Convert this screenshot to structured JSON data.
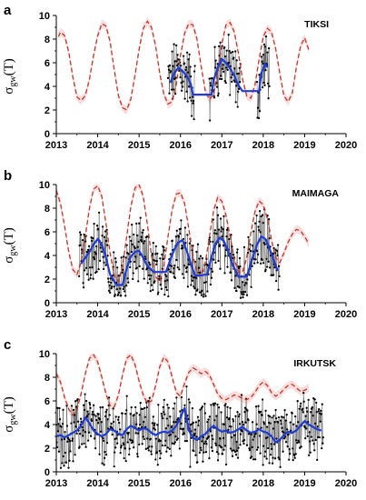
{
  "chart_data": [
    {
      "type": "line",
      "panel_label": "a",
      "station": "TIKSI",
      "ylabel": "σ",
      "ylabel_sub": "gw",
      "ylabel_suffix": "(T)",
      "xlim": [
        2013,
        2020
      ],
      "ylim": [
        0,
        10
      ],
      "xticks": [
        "2013",
        "2014",
        "2015",
        "2016",
        "2017",
        "2018",
        "2019",
        "2020"
      ],
      "yticks": [
        "0",
        "2",
        "4",
        "6",
        "8",
        "10"
      ],
      "grid": false,
      "colors": {
        "observed": "#000000",
        "smoothed": "#1f3bd6",
        "model": "#c0392b"
      },
      "model": {
        "x": [
          2013.05,
          2013.1,
          2013.2,
          2013.3,
          2013.4,
          2013.5,
          2013.6,
          2013.7,
          2013.8,
          2013.9,
          2014.0,
          2014.1,
          2014.2,
          2014.3,
          2014.4,
          2014.5,
          2014.6,
          2014.7,
          2014.8,
          2014.9,
          2015.0,
          2015.1,
          2015.2,
          2015.3,
          2015.4,
          2015.5,
          2015.6,
          2015.7,
          2015.8,
          2015.9,
          2016.0,
          2016.1,
          2016.2,
          2016.3,
          2016.4,
          2016.5,
          2016.6,
          2016.7,
          2016.8,
          2016.9,
          2017.0,
          2017.1,
          2017.2,
          2017.3,
          2017.4,
          2017.5,
          2017.6,
          2017.7,
          2017.8,
          2017.9,
          2018.0,
          2018.1,
          2018.2,
          2018.3,
          2018.4,
          2018.5,
          2018.6,
          2018.7,
          2018.8,
          2018.9,
          2019.0,
          2019.1
        ],
        "y": [
          8.2,
          8.6,
          8.3,
          6.9,
          4.8,
          3.1,
          2.8,
          3.2,
          4.6,
          6.6,
          8.3,
          9.3,
          9.1,
          7.8,
          5.4,
          3.2,
          2.2,
          2.0,
          2.9,
          4.9,
          7.1,
          8.9,
          9.5,
          9.0,
          7.4,
          5.1,
          3.3,
          2.5,
          2.7,
          4.2,
          6.6,
          8.5,
          9.3,
          9.2,
          8.0,
          5.7,
          3.6,
          2.9,
          3.3,
          5.2,
          7.6,
          9.2,
          9.4,
          8.6,
          6.8,
          4.6,
          3.2,
          3.0,
          4.1,
          6.3,
          8.2,
          8.9,
          8.6,
          7.2,
          5.1,
          3.2,
          2.7,
          3.4,
          5.6,
          7.4,
          8.1,
          7.1
        ]
      },
      "smoothed": {
        "x": [
          2015.75,
          2015.85,
          2015.95,
          2016.05,
          2016.15,
          2016.25,
          2016.3,
          2016.75,
          2016.8,
          2016.9,
          2017.0,
          2017.1,
          2017.2,
          2017.3,
          2017.4,
          2017.5,
          2017.9,
          2017.95,
          2018.05,
          2018.1
        ],
        "y": [
          4.3,
          5.1,
          5.6,
          5.3,
          4.9,
          4.2,
          3.3,
          3.3,
          4.5,
          5.6,
          6.3,
          6.0,
          5.5,
          4.9,
          4.1,
          3.6,
          3.6,
          5.1,
          5.9,
          5.6
        ]
      },
      "observed_segments": [
        [
          2015.7,
          2016.35
        ],
        [
          2016.7,
          2017.45
        ],
        [
          2017.85,
          2018.15
        ]
      ],
      "observed_range": [
        0.8,
        8.8
      ]
    },
    {
      "type": "line",
      "panel_label": "b",
      "station": "MAIMAGA",
      "ylabel": "σ",
      "ylabel_sub": "gw",
      "ylabel_suffix": "(T)",
      "xlim": [
        2013,
        2020
      ],
      "ylim": [
        0,
        10
      ],
      "xticks": [
        "2013",
        "2014",
        "2015",
        "2016",
        "2017",
        "2018",
        "2019",
        "2020"
      ],
      "yticks": [
        "0",
        "2",
        "4",
        "6",
        "8",
        "10"
      ],
      "grid": false,
      "colors": {
        "observed": "#000000",
        "smoothed": "#1f3bd6",
        "model": "#c0392b"
      },
      "model": {
        "x": [
          2013.0,
          2013.1,
          2013.2,
          2013.3,
          2013.4,
          2013.5,
          2013.6,
          2013.7,
          2013.8,
          2013.9,
          2014.0,
          2014.1,
          2014.2,
          2014.3,
          2014.4,
          2014.5,
          2014.6,
          2014.7,
          2014.8,
          2014.9,
          2015.0,
          2015.1,
          2015.2,
          2015.3,
          2015.4,
          2015.5,
          2015.6,
          2015.7,
          2015.8,
          2015.9,
          2016.0,
          2016.1,
          2016.2,
          2016.3,
          2016.4,
          2016.5,
          2016.6,
          2016.7,
          2016.8,
          2016.9,
          2017.0,
          2017.1,
          2017.2,
          2017.3,
          2017.4,
          2017.5,
          2017.6,
          2017.7,
          2017.8,
          2017.9,
          2018.0,
          2018.1,
          2018.2,
          2018.3,
          2018.4,
          2018.5,
          2018.6,
          2018.7,
          2018.8,
          2018.9,
          2019.0,
          2019.1
        ],
        "y": [
          9.5,
          8.4,
          6.5,
          4.3,
          2.8,
          2.4,
          3.4,
          5.6,
          8.0,
          9.6,
          9.9,
          9.0,
          6.7,
          4.2,
          2.3,
          1.8,
          3.1,
          5.6,
          8.1,
          9.7,
          10.0,
          9.0,
          6.6,
          4.0,
          2.2,
          1.8,
          3.2,
          5.6,
          7.9,
          9.2,
          9.3,
          8.4,
          6.3,
          4.0,
          2.6,
          2.3,
          3.4,
          5.6,
          7.8,
          8.9,
          8.6,
          7.4,
          5.6,
          3.7,
          2.6,
          2.6,
          3.8,
          5.9,
          7.7,
          8.6,
          8.3,
          7.1,
          5.3,
          3.8,
          3.4,
          4.2,
          5.1,
          5.8,
          6.2,
          6.1,
          5.6,
          5.0
        ]
      },
      "smoothed": {
        "x": [
          2013.6,
          2013.7,
          2013.8,
          2013.9,
          2014.0,
          2014.1,
          2014.2,
          2014.3,
          2014.45,
          2014.6,
          2014.7,
          2014.8,
          2014.9,
          2015.0,
          2015.1,
          2015.2,
          2015.35,
          2015.65,
          2015.75,
          2015.85,
          2015.95,
          2016.05,
          2016.15,
          2016.25,
          2016.35,
          2016.45,
          2016.65,
          2016.75,
          2016.85,
          2016.95,
          2017.05,
          2017.15,
          2017.25,
          2017.4,
          2017.6,
          2017.75,
          2017.85,
          2017.95,
          2018.05,
          2018.15,
          2018.25,
          2018.35
        ],
        "y": [
          3.3,
          3.8,
          4.3,
          4.9,
          5.4,
          4.9,
          3.8,
          2.4,
          1.5,
          1.5,
          2.9,
          3.9,
          4.3,
          4.4,
          3.8,
          3.1,
          2.6,
          2.6,
          3.6,
          4.5,
          5.1,
          5.3,
          4.4,
          3.3,
          2.3,
          2.3,
          2.4,
          3.9,
          5.0,
          5.5,
          5.2,
          4.4,
          3.3,
          2.2,
          2.2,
          3.9,
          4.9,
          5.6,
          5.4,
          4.6,
          3.6,
          2.7
        ]
      },
      "observed_segments": [
        [
          2013.55,
          2018.4
        ]
      ],
      "observed_range": [
        0.4,
        9.5
      ]
    },
    {
      "type": "line",
      "panel_label": "c",
      "station": "IRKUTSK",
      "ylabel": "σ",
      "ylabel_sub": "gw",
      "ylabel_suffix": "(T)",
      "xlim": [
        2013,
        2020
      ],
      "ylim": [
        0,
        10
      ],
      "xticks": [
        "2013",
        "2014",
        "2015",
        "2016",
        "2017",
        "2018",
        "2019",
        "2020"
      ],
      "yticks": [
        "0",
        "2",
        "4",
        "6",
        "8",
        "10"
      ],
      "grid": false,
      "colors": {
        "observed": "#000000",
        "smoothed": "#1f3bd6",
        "model": "#c0392b"
      },
      "model": {
        "x": [
          2013.0,
          2013.1,
          2013.2,
          2013.3,
          2013.4,
          2013.5,
          2013.6,
          2013.7,
          2013.8,
          2013.9,
          2014.0,
          2014.1,
          2014.2,
          2014.3,
          2014.4,
          2014.5,
          2014.6,
          2014.7,
          2014.8,
          2014.9,
          2015.0,
          2015.1,
          2015.2,
          2015.3,
          2015.4,
          2015.5,
          2015.6,
          2015.7,
          2015.8,
          2015.9,
          2016.0,
          2016.1,
          2016.2,
          2016.3,
          2016.4,
          2016.5,
          2016.6,
          2016.7,
          2016.8,
          2016.9,
          2017.0,
          2017.1,
          2017.2,
          2017.3,
          2017.4,
          2017.5,
          2017.6,
          2017.7,
          2017.8,
          2017.9,
          2018.0,
          2018.1,
          2018.2,
          2018.3,
          2018.4,
          2018.5,
          2018.6,
          2018.7,
          2018.8,
          2018.9,
          2019.0,
          2019.1
        ],
        "y": [
          8.3,
          7.6,
          6.3,
          5.3,
          4.8,
          5.3,
          6.6,
          8.3,
          9.6,
          9.9,
          9.3,
          8.0,
          6.6,
          5.6,
          5.5,
          6.5,
          8.2,
          9.6,
          9.9,
          9.1,
          7.7,
          6.5,
          5.8,
          6.0,
          7.3,
          8.9,
          9.7,
          9.3,
          8.0,
          6.7,
          6.4,
          7.5,
          8.4,
          8.8,
          8.6,
          8.3,
          8.5,
          8.2,
          7.4,
          6.6,
          6.2,
          6.1,
          6.3,
          6.5,
          6.4,
          6.2,
          6.1,
          6.3,
          6.7,
          7.3,
          7.6,
          7.3,
          6.7,
          6.4,
          6.6,
          7.0,
          7.3,
          7.4,
          7.1,
          6.8,
          6.9,
          7.1
        ]
      },
      "smoothed": {
        "x": [
          2013.0,
          2013.1,
          2013.2,
          2013.3,
          2013.4,
          2013.5,
          2013.6,
          2013.7,
          2013.8,
          2013.9,
          2014.0,
          2014.1,
          2014.2,
          2014.3,
          2014.4,
          2014.5,
          2014.6,
          2014.7,
          2014.8,
          2014.9,
          2015.0,
          2015.1,
          2015.2,
          2015.3,
          2015.4,
          2015.5,
          2015.6,
          2015.7,
          2015.8,
          2015.9,
          2016.0,
          2016.1,
          2016.2,
          2016.3,
          2016.4,
          2016.5,
          2016.6,
          2016.7,
          2016.8,
          2016.9,
          2017.0,
          2017.1,
          2017.2,
          2017.3,
          2017.4,
          2017.5,
          2017.6,
          2017.7,
          2017.8,
          2017.9,
          2018.0,
          2018.1,
          2018.2,
          2018.3,
          2018.4,
          2018.5,
          2018.6,
          2018.7,
          2018.8,
          2018.9,
          2019.0,
          2019.1,
          2019.2,
          2019.3,
          2019.4
        ],
        "y": [
          3.0,
          3.1,
          2.9,
          3.1,
          3.3,
          3.5,
          3.9,
          4.6,
          4.1,
          3.5,
          3.2,
          3.0,
          3.2,
          3.6,
          3.5,
          3.2,
          3.1,
          3.6,
          3.9,
          3.7,
          3.5,
          3.7,
          3.6,
          3.3,
          3.1,
          3.3,
          3.4,
          3.3,
          3.5,
          3.9,
          4.6,
          5.4,
          3.5,
          2.9,
          2.7,
          3.0,
          3.2,
          3.6,
          3.9,
          3.6,
          3.4,
          3.5,
          3.3,
          3.4,
          3.6,
          3.8,
          3.5,
          3.3,
          3.4,
          3.6,
          3.4,
          3.3,
          3.0,
          2.5,
          2.7,
          3.1,
          3.4,
          3.3,
          3.5,
          3.9,
          4.3,
          4.0,
          3.8,
          3.6,
          3.5
        ]
      },
      "observed_segments": [
        [
          2013.0,
          2019.45
        ]
      ],
      "observed_range": [
        0.3,
        8.6
      ]
    }
  ]
}
